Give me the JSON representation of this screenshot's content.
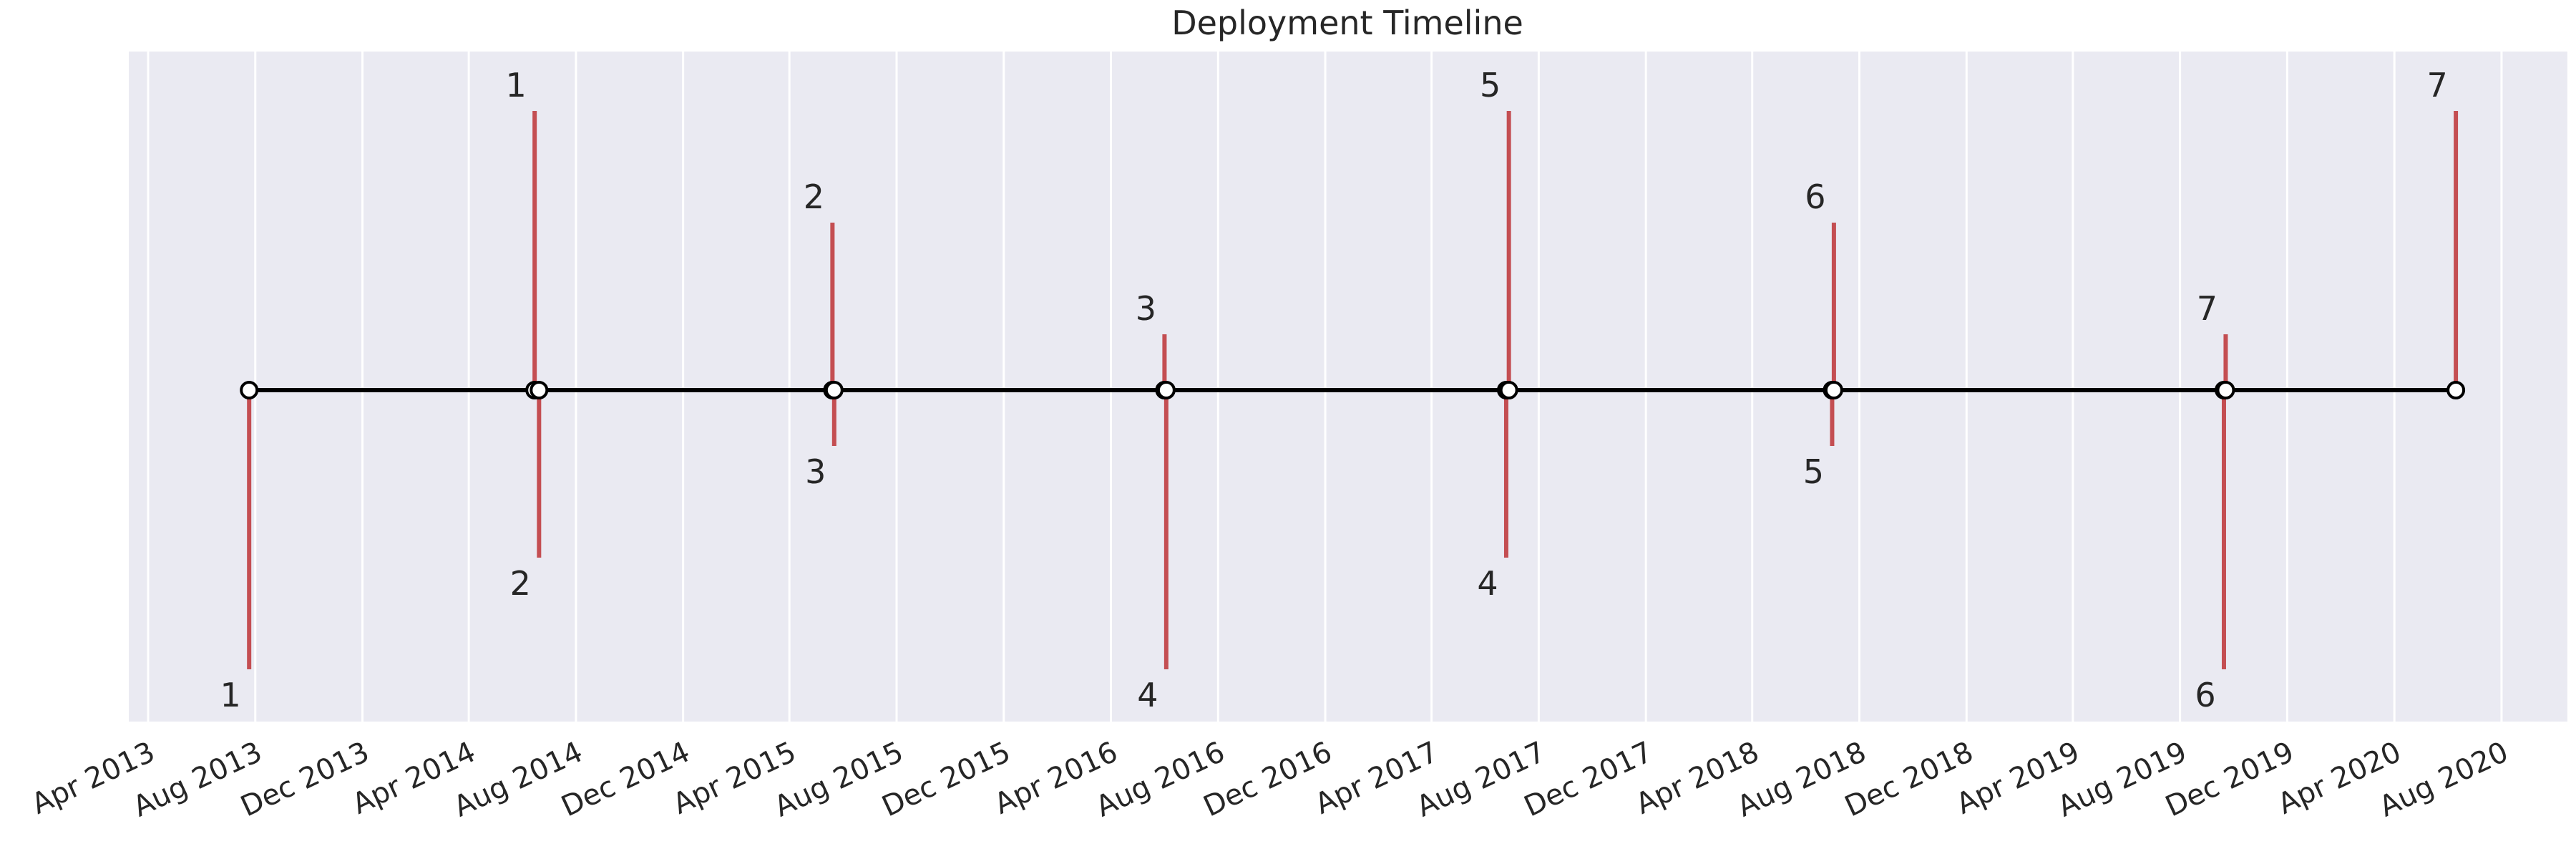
{
  "chart_data": {
    "type": "timeline",
    "title": "Deployment Timeline",
    "xlabel": "",
    "ylabel": "",
    "grid": true,
    "x_ticks": [
      "Apr 2013",
      "Aug 2013",
      "Dec 2013",
      "Apr 2014",
      "Aug 2014",
      "Dec 2014",
      "Apr 2015",
      "Aug 2015",
      "Dec 2015",
      "Apr 2016",
      "Aug 2016",
      "Dec 2016",
      "Apr 2017",
      "Aug 2017",
      "Dec 2017",
      "Apr 2018",
      "Aug 2018",
      "Dec 2018",
      "Apr 2019",
      "Aug 2019",
      "Dec 2019",
      "Apr 2020",
      "Aug 2020"
    ],
    "xlim": [
      "2013-03-10",
      "2020-10-15"
    ],
    "ylim": [
      -6,
      6
    ],
    "events": [
      {
        "date": "2013-07-25",
        "level": -5,
        "label": "1"
      },
      {
        "date": "2014-06-15",
        "level": 5,
        "label": "1"
      },
      {
        "date": "2014-06-20",
        "level": -3,
        "label": "2"
      },
      {
        "date": "2015-05-20",
        "level": 3,
        "label": "2"
      },
      {
        "date": "2015-05-22",
        "level": -1,
        "label": "3"
      },
      {
        "date": "2016-06-01",
        "level": 1,
        "label": "3"
      },
      {
        "date": "2016-06-03",
        "level": -5,
        "label": "4"
      },
      {
        "date": "2017-06-25",
        "level": -3,
        "label": "4"
      },
      {
        "date": "2017-06-28",
        "level": 5,
        "label": "5"
      },
      {
        "date": "2018-07-01",
        "level": -1,
        "label": "5"
      },
      {
        "date": "2018-07-03",
        "level": 3,
        "label": "6"
      },
      {
        "date": "2019-09-20",
        "level": -5,
        "label": "6"
      },
      {
        "date": "2019-09-22",
        "level": 1,
        "label": "7"
      },
      {
        "date": "2020-06-10",
        "level": 5,
        "label": "7"
      }
    ],
    "colors": {
      "background": "#eaeaf2",
      "grid": "#ffffff",
      "stem": "#c44e52",
      "baseline": "#000000",
      "marker_fill": "#ffffff",
      "marker_edge": "#000000",
      "text": "#262626"
    }
  }
}
